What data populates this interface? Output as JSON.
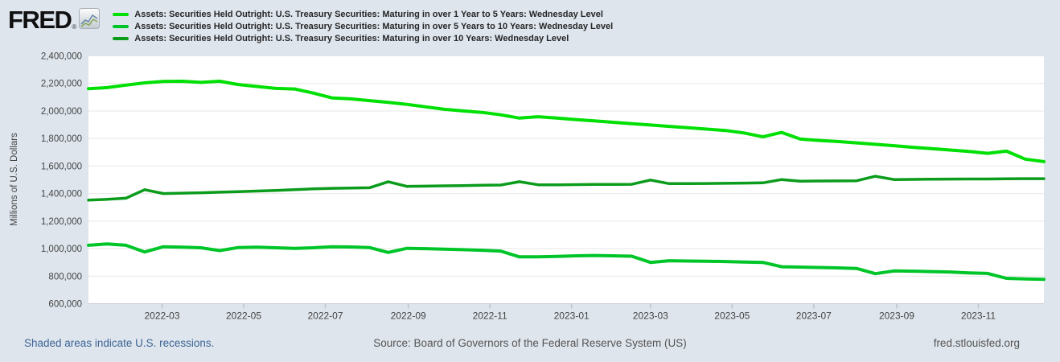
{
  "logo": {
    "text": "FRED",
    "registered": "®"
  },
  "y_axis": {
    "title": "Millions of U.S. Dollars",
    "ticks": [
      "2,400,000",
      "2,200,000",
      "2,000,000",
      "1,800,000",
      "1,600,000",
      "1,400,000",
      "1,200,000",
      "1,000,000",
      "800,000",
      "600,000"
    ],
    "tick_values": [
      2400000,
      2200000,
      2000000,
      1800000,
      1600000,
      1400000,
      1200000,
      1000000,
      800000,
      600000
    ]
  },
  "x_axis": {
    "ticks": [
      "2022-03",
      "2022-05",
      "2022-07",
      "2022-09",
      "2022-11",
      "2023-01",
      "2023-03",
      "2023-05",
      "2023-07",
      "2023-09",
      "2023-11"
    ]
  },
  "footer": {
    "recessions_note": "Shaded areas indicate U.S. recessions.",
    "source": "Source: Board of Governors of the Federal Reserve System (US)",
    "site": "fred.stlouisfed.org"
  },
  "chart_data": {
    "type": "line",
    "title": "",
    "ylabel": "Millions of U.S. Dollars",
    "ylim": [
      600000,
      2400000
    ],
    "xlim": [
      "2022-01-05",
      "2023-12-20"
    ],
    "grid": "horizontal",
    "legend_position": "top-left",
    "x": [
      "2022-01-05",
      "2022-01-19",
      "2022-02-02",
      "2022-02-16",
      "2022-03-02",
      "2022-03-16",
      "2022-03-30",
      "2022-04-13",
      "2022-04-27",
      "2022-05-11",
      "2022-05-25",
      "2022-06-08",
      "2022-06-22",
      "2022-07-06",
      "2022-07-20",
      "2022-08-03",
      "2022-08-17",
      "2022-08-31",
      "2022-09-14",
      "2022-09-28",
      "2022-10-12",
      "2022-10-26",
      "2022-11-09",
      "2022-11-23",
      "2022-12-07",
      "2022-12-21",
      "2023-01-04",
      "2023-01-18",
      "2023-02-01",
      "2023-02-15",
      "2023-03-01",
      "2023-03-15",
      "2023-03-29",
      "2023-04-12",
      "2023-04-26",
      "2023-05-10",
      "2023-05-24",
      "2023-06-07",
      "2023-06-21",
      "2023-07-05",
      "2023-07-19",
      "2023-08-02",
      "2023-08-16",
      "2023-08-30",
      "2023-09-13",
      "2023-09-27",
      "2023-10-11",
      "2023-10-25",
      "2023-11-08",
      "2023-11-22",
      "2023-12-06",
      "2023-12-20"
    ],
    "series": [
      {
        "name": "Assets: Securities Held Outright: U.S. Treasury Securities: Maturing in over 1 Year to 5 Years: Wednesday Level",
        "color": "#00E004",
        "values": [
          2162000,
          2170000,
          2188000,
          2204000,
          2214000,
          2216000,
          2208000,
          2216000,
          2192000,
          2178000,
          2164000,
          2160000,
          2130000,
          2095000,
          2088000,
          2075000,
          2062000,
          2048000,
          2030000,
          2012000,
          2000000,
          1990000,
          1972000,
          1948000,
          1958000,
          1948000,
          1938000,
          1928000,
          1918000,
          1908000,
          1898000,
          1888000,
          1878000,
          1868000,
          1858000,
          1840000,
          1812000,
          1844000,
          1796000,
          1786000,
          1778000,
          1768000,
          1758000,
          1748000,
          1736000,
          1726000,
          1716000,
          1706000,
          1692000,
          1708000,
          1650000,
          1632000
        ]
      },
      {
        "name": "Assets: Securities Held Outright: U.S. Treasury Securities: Maturing in over 5 Years to 10 Years: Wednesday Level",
        "color": "#00C529",
        "values": [
          1024000,
          1034000,
          1024000,
          976000,
          1014000,
          1010000,
          1006000,
          986000,
          1008000,
          1010000,
          1006000,
          1002000,
          1006000,
          1014000,
          1012000,
          1008000,
          972000,
          1002000,
          1000000,
          996000,
          992000,
          988000,
          982000,
          940000,
          940000,
          943000,
          948000,
          950000,
          948000,
          945000,
          900000,
          912000,
          910000,
          908000,
          906000,
          903000,
          900000,
          868000,
          866000,
          863000,
          860000,
          856000,
          818000,
          838000,
          836000,
          833000,
          830000,
          824000,
          820000,
          784000,
          780000,
          777000
        ]
      },
      {
        "name": "Assets: Securities Held Outright: U.S. Treasury Securities: Maturing in over 10 Years: Wednesday Level",
        "color": "#0B9C1C",
        "values": [
          1352000,
          1358000,
          1366000,
          1428000,
          1400000,
          1403000,
          1406000,
          1410000,
          1414000,
          1418000,
          1422000,
          1428000,
          1434000,
          1438000,
          1440000,
          1442000,
          1486000,
          1452000,
          1454000,
          1456000,
          1458000,
          1460000,
          1462000,
          1486000,
          1464000,
          1464000,
          1465000,
          1466000,
          1466000,
          1467000,
          1498000,
          1472000,
          1472000,
          1473000,
          1474000,
          1476000,
          1478000,
          1502000,
          1490000,
          1491000,
          1492000,
          1493000,
          1526000,
          1502000,
          1503000,
          1504000,
          1505000,
          1506000,
          1506000,
          1507000,
          1508000,
          1508000
        ]
      }
    ]
  }
}
